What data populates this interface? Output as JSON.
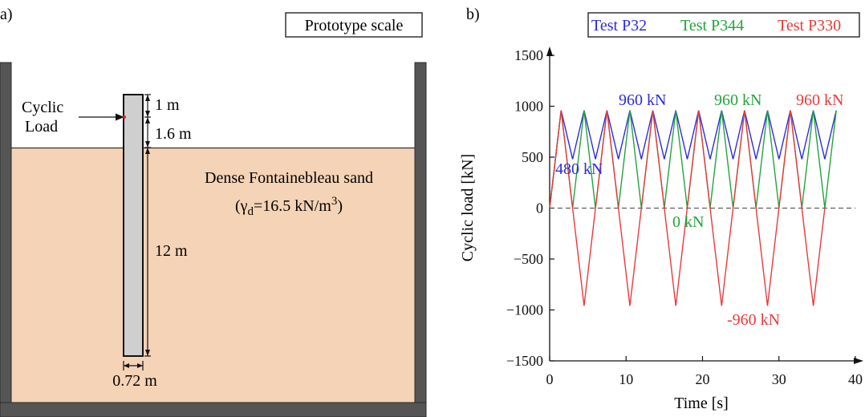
{
  "panel_a": {
    "label": "a)",
    "scale_box": "Prototype scale",
    "load_label": {
      "line1": "Cyclic",
      "line2": "Load"
    },
    "dims": {
      "top": "1 m",
      "above_ground": "1.6 m",
      "embedded": "12 m",
      "diameter": "0.72 m"
    },
    "sand": {
      "name": "Dense Fontainebleau sand",
      "prop_open": "(γ",
      "prop_sub": "d",
      "prop_mid": "=16.5 kN/m",
      "prop_sup": "3",
      "prop_close": ")"
    },
    "colors": {
      "sand": "#f5d3b6",
      "pile": "#cfcfcf",
      "wall": "#555555"
    }
  },
  "panel_b": {
    "label": "b)",
    "legend": [
      {
        "name": "Test P32",
        "color": "#2b2be0"
      },
      {
        "name": "Test P344",
        "color": "#22a43a"
      },
      {
        "name": "Test P330",
        "color": "#e83a3a"
      }
    ],
    "annotations": {
      "blue_max": "960 kN",
      "green_max": "960 kN",
      "red_max": "960 kN",
      "blue_min": "480 kN",
      "green_min": "0 kN",
      "red_min": "-960 kN"
    }
  },
  "chart_data": {
    "type": "line",
    "title": "",
    "xlabel": "Time [s]",
    "ylabel": "Cyclic load [kN]",
    "xlim": [
      0,
      40
    ],
    "ylim": [
      -1500,
      1500
    ],
    "xticks": [
      0,
      10,
      20,
      30,
      40
    ],
    "yticks": [
      -1500,
      -1000,
      -500,
      0,
      500,
      1000,
      1500
    ],
    "zero_line": "dashed",
    "series": [
      {
        "name": "Test P32",
        "color": "#2b2be0",
        "x": [
          0,
          1.5,
          3,
          4.5,
          6,
          7.5,
          9,
          10.5,
          12,
          13.5,
          15,
          16.5,
          18,
          19.5,
          21,
          22.5,
          24,
          25.5,
          27,
          28.5,
          30,
          31.5,
          33,
          34.5,
          36,
          37.5
        ],
        "y": [
          0,
          960,
          480,
          960,
          480,
          960,
          480,
          960,
          480,
          960,
          480,
          960,
          480,
          960,
          480,
          960,
          480,
          960,
          480,
          960,
          480,
          960,
          480,
          960,
          480,
          960
        ]
      },
      {
        "name": "Test P344",
        "color": "#22a43a",
        "x": [
          0,
          1.5,
          3,
          4.5,
          6,
          7.5,
          9,
          10.5,
          12,
          13.5,
          15,
          16.5,
          18,
          19.5,
          21,
          22.5,
          24,
          25.5,
          27,
          28.5,
          30,
          31.5,
          33,
          34.5,
          36,
          37.5
        ],
        "y": [
          0,
          960,
          0,
          960,
          0,
          960,
          0,
          960,
          0,
          960,
          0,
          960,
          0,
          960,
          0,
          960,
          0,
          960,
          0,
          960,
          0,
          960,
          0,
          960,
          0,
          960
        ]
      },
      {
        "name": "Test P330",
        "color": "#e83a3a",
        "x": [
          0,
          1.5,
          4.5,
          7.5,
          10.5,
          13.5,
          16.5,
          19.5,
          22.5,
          25.5,
          28.5,
          31.5,
          34.5,
          36.0
        ],
        "y": [
          0,
          960,
          -960,
          960,
          -960,
          960,
          -960,
          960,
          -960,
          960,
          -960,
          960,
          -960,
          0
        ]
      }
    ]
  }
}
